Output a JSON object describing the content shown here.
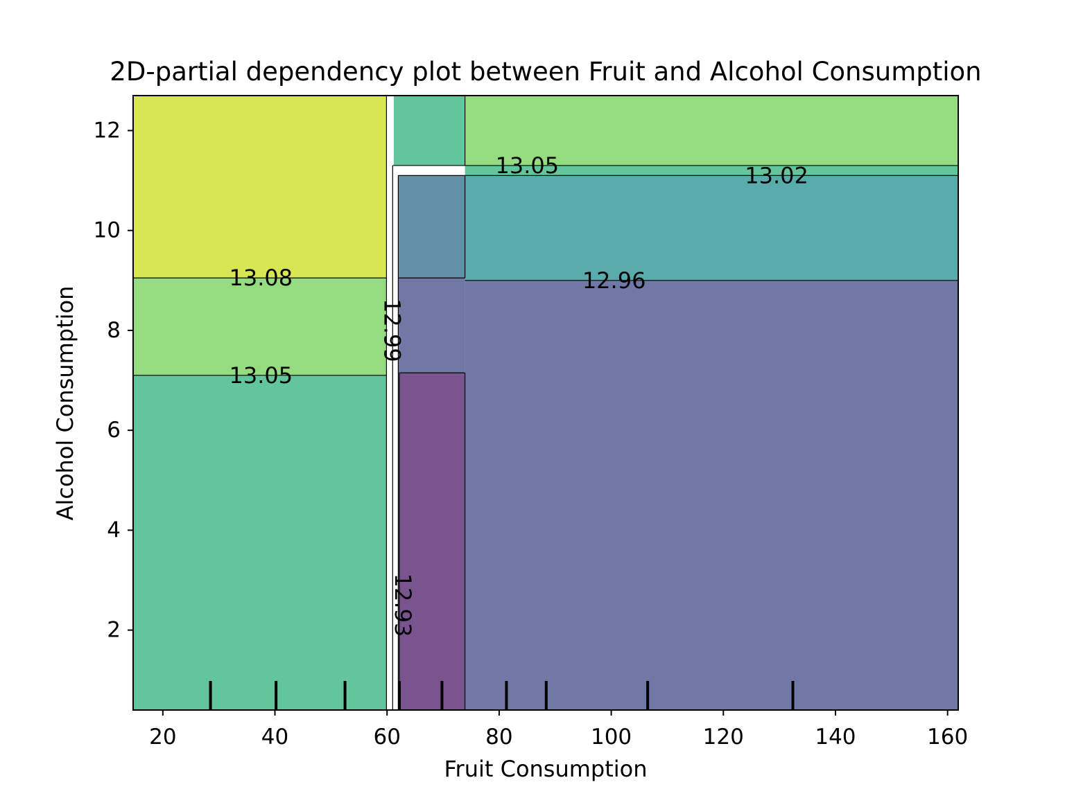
{
  "chart_data": {
    "type": "contour",
    "title": "2D-partial dependency plot between Fruit and Alcohol Consumption",
    "xlabel": "Fruit Consumption",
    "ylabel": "Alcohol Consumption",
    "xlim": [
      14.7,
      161.9
    ],
    "ylim": [
      0.4,
      12.7
    ],
    "xticks": [
      20,
      40,
      60,
      80,
      100,
      120,
      140,
      160
    ],
    "yticks": [
      2,
      4,
      6,
      8,
      10,
      12
    ],
    "grid": false,
    "colormap": "viridis",
    "regions": [
      {
        "name": "left-top",
        "x": [
          14.7,
          59.9
        ],
        "y": [
          9.05,
          12.7
        ],
        "level": "13.08-13.11",
        "color": "#d8e653"
      },
      {
        "name": "left-middle",
        "x": [
          14.7,
          59.9
        ],
        "y": [
          7.1,
          9.05
        ],
        "level": "13.05-13.08",
        "color": "#95db7f"
      },
      {
        "name": "left-bottom",
        "x": [
          14.7,
          59.9
        ],
        "y": [
          0.4,
          7.1
        ],
        "level": "13.02-13.05",
        "color": "#63c59c"
      },
      {
        "name": "middle-top",
        "x": [
          61.2,
          73.9
        ],
        "y": [
          11.3,
          12.7
        ],
        "level": "13.02-13.05",
        "color": "#63c59c"
      },
      {
        "name": "middle-upper",
        "x": [
          62.0,
          73.9
        ],
        "y": [
          9.05,
          11.1
        ],
        "level": "12.99-13.02",
        "color": "#6191a8"
      },
      {
        "name": "middle-lower",
        "x": [
          62.0,
          73.9
        ],
        "y": [
          0.4,
          9.05
        ],
        "level": "12.93-12.96",
        "color": "#7078a6"
      },
      {
        "name": "middle-bottom",
        "x": [
          62.2,
          73.9
        ],
        "y": [
          0.4,
          7.15
        ],
        "level": "12.90-12.93",
        "color": "#79548f"
      },
      {
        "name": "right-top",
        "x": [
          73.9,
          161.9
        ],
        "y": [
          11.3,
          12.7
        ],
        "level": "13.05-13.08",
        "color": "#95db7f"
      },
      {
        "name": "right-band",
        "x": [
          73.9,
          161.9
        ],
        "y": [
          11.1,
          11.3
        ],
        "level": "13.02-13.05",
        "color": "#63c59c"
      },
      {
        "name": "right-upper",
        "x": [
          73.9,
          161.9
        ],
        "y": [
          9.0,
          11.1
        ],
        "level": "12.99-13.02",
        "color": "#5aabab"
      },
      {
        "name": "right-lower",
        "x": [
          73.9,
          161.9
        ],
        "y": [
          0.4,
          9.0
        ],
        "level": "12.93-12.96",
        "color": "#7078a6"
      }
    ],
    "contour_labels": [
      {
        "text": "13.08",
        "x": 37.5,
        "y": 9.05
      },
      {
        "text": "13.05",
        "x": 37.5,
        "y": 7.1
      },
      {
        "text": "13.05",
        "x": 85.0,
        "y": 11.3
      },
      {
        "text": "13.02",
        "x": 129.5,
        "y": 11.1
      },
      {
        "text": "12.96",
        "x": 100.5,
        "y": 9.0
      },
      {
        "text": "12.99",
        "x": 60.9,
        "y": 8.0,
        "rotation": 90
      },
      {
        "text": "12.93",
        "x": 62.8,
        "y": 2.5,
        "rotation": 90
      }
    ],
    "rug_x": [
      28.5,
      40.2,
      52.5,
      62.2,
      69.8,
      81.3,
      88.4,
      106.5,
      132.4
    ]
  }
}
